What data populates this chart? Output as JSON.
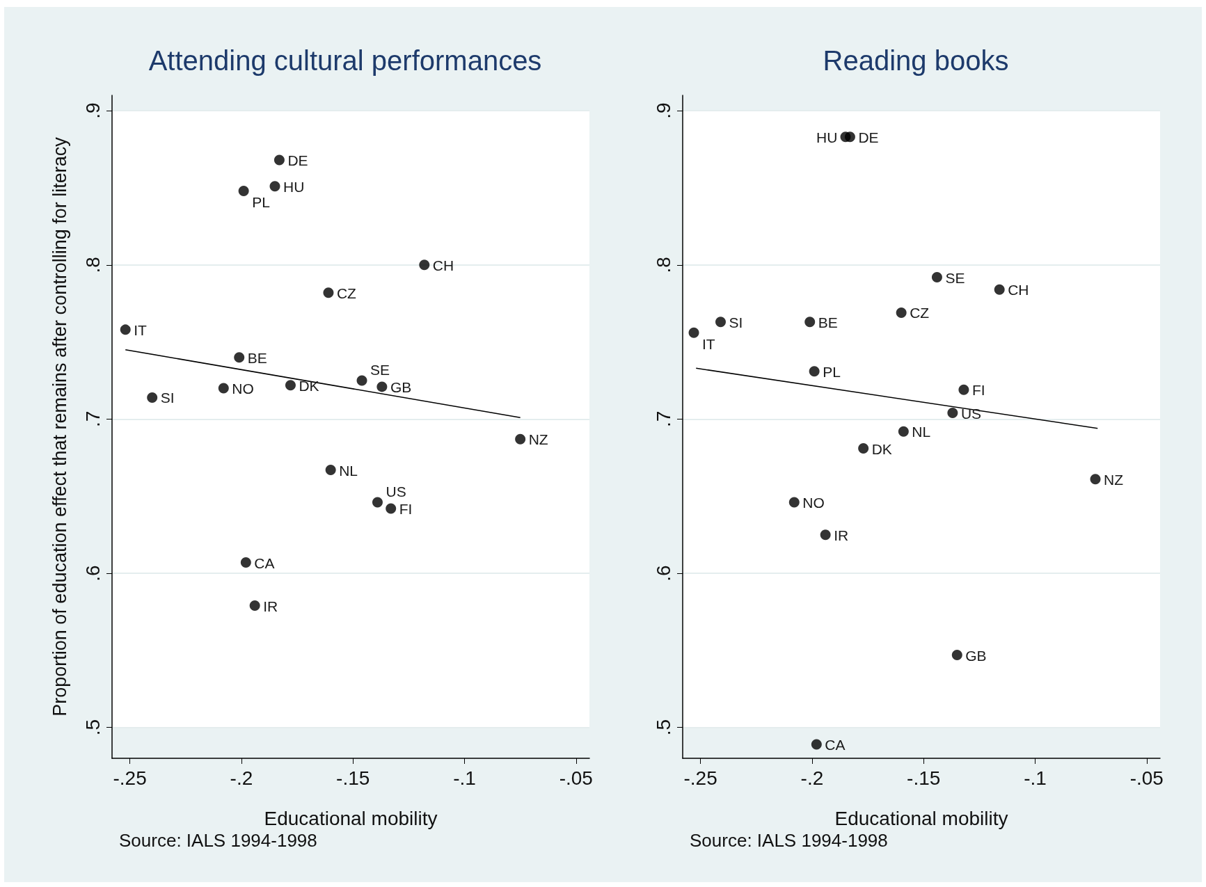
{
  "chart_data": [
    {
      "type": "scatter",
      "title": "Attending cultural performances",
      "xlabel": "Educational mobility",
      "ylabel": "Proportion of education effect that remains after controlling for literacy",
      "grid": "y",
      "xlim": [
        -0.258,
        -0.044
      ],
      "ylim": [
        0.48,
        0.91
      ],
      "xticks": [
        {
          "value": -0.25,
          "label": "-.25"
        },
        {
          "value": -0.2,
          "label": "-.2"
        },
        {
          "value": -0.15,
          "label": "-.15"
        },
        {
          "value": -0.1,
          "label": "-.1"
        },
        {
          "value": -0.05,
          "label": "-.05"
        }
      ],
      "yticks": [
        {
          "value": 0.5,
          "label": ".5"
        },
        {
          "value": 0.6,
          "label": ".6"
        },
        {
          "value": 0.7,
          "label": ".7"
        },
        {
          "value": 0.8,
          "label": ".8"
        },
        {
          "value": 0.9,
          "label": ".9"
        }
      ],
      "series": [
        {
          "color": "#000000",
          "marker": "circle",
          "x": [
            -0.183,
            -0.185,
            -0.199,
            -0.118,
            -0.161,
            -0.252,
            -0.201,
            -0.208,
            -0.178,
            -0.146,
            -0.137,
            -0.24,
            -0.075,
            -0.16,
            -0.139,
            -0.133,
            -0.198,
            -0.194
          ],
          "values": [
            0.868,
            0.851,
            0.848,
            0.8,
            0.782,
            0.758,
            0.74,
            0.72,
            0.722,
            0.725,
            0.721,
            0.714,
            0.687,
            0.667,
            0.646,
            0.642,
            0.607,
            0.579
          ]
        },
        {
          "type": "line",
          "marker": "none",
          "color": "#000000",
          "x": [
            -0.252,
            -0.075
          ],
          "values": [
            0.745,
            0.701
          ]
        }
      ],
      "annotations": [
        "Source: IALS 1994-1998",
        {
          "text": "DE",
          "x": -0.183,
          "y": 0.868
        },
        {
          "text": "HU",
          "x": -0.185,
          "y": 0.851
        },
        {
          "text": "PL",
          "x": -0.199,
          "y": 0.848
        },
        {
          "text": "CH",
          "x": -0.118,
          "y": 0.8
        },
        {
          "text": "CZ",
          "x": -0.161,
          "y": 0.782
        },
        {
          "text": "IT",
          "x": -0.252,
          "y": 0.758
        },
        {
          "text": "BE",
          "x": -0.201,
          "y": 0.74
        },
        {
          "text": "NO",
          "x": -0.208,
          "y": 0.72
        },
        {
          "text": "DK",
          "x": -0.178,
          "y": 0.722
        },
        {
          "text": "SE",
          "x": -0.146,
          "y": 0.725
        },
        {
          "text": "GB",
          "x": -0.137,
          "y": 0.721
        },
        {
          "text": "SI",
          "x": -0.24,
          "y": 0.714
        },
        {
          "text": "NZ",
          "x": -0.075,
          "y": 0.687
        },
        {
          "text": "NL",
          "x": -0.16,
          "y": 0.667
        },
        {
          "text": "US",
          "x": -0.139,
          "y": 0.646
        },
        {
          "text": "FI",
          "x": -0.133,
          "y": 0.642
        },
        {
          "text": "CA",
          "x": -0.198,
          "y": 0.607
        },
        {
          "text": "IR",
          "x": -0.194,
          "y": 0.579
        }
      ]
    },
    {
      "type": "scatter",
      "title": "Reading books",
      "xlabel": "Educational mobility",
      "grid": "y",
      "xlim": [
        -0.258,
        -0.044
      ],
      "ylim": [
        0.48,
        0.91
      ],
      "xticks": [
        {
          "value": -0.25,
          "label": "-.25"
        },
        {
          "value": -0.2,
          "label": "-.2"
        },
        {
          "value": -0.15,
          "label": "-.15"
        },
        {
          "value": -0.1,
          "label": "-.1"
        },
        {
          "value": -0.05,
          "label": "-.05"
        }
      ],
      "yticks": [
        {
          "value": 0.5,
          "label": ".5"
        },
        {
          "value": 0.6,
          "label": ".6"
        },
        {
          "value": 0.7,
          "label": ".7"
        },
        {
          "value": 0.8,
          "label": ".8"
        },
        {
          "value": 0.9,
          "label": ".9"
        }
      ],
      "series": [
        {
          "color": "#000000",
          "marker": "circle",
          "x": [
            -0.185,
            -0.183,
            -0.144,
            -0.116,
            -0.16,
            -0.241,
            -0.201,
            -0.253,
            -0.199,
            -0.132,
            -0.137,
            -0.159,
            -0.177,
            -0.073,
            -0.208,
            -0.194,
            -0.135,
            -0.198
          ],
          "values": [
            0.883,
            0.883,
            0.792,
            0.784,
            0.769,
            0.763,
            0.763,
            0.756,
            0.731,
            0.719,
            0.704,
            0.692,
            0.681,
            0.661,
            0.646,
            0.625,
            0.547,
            0.489
          ]
        },
        {
          "type": "line",
          "marker": "none",
          "color": "#000000",
          "x": [
            -0.252,
            -0.072
          ],
          "values": [
            0.733,
            0.694
          ]
        }
      ],
      "annotations": [
        "Source: IALS 1994-1998",
        {
          "text": "HU",
          "x": -0.185,
          "y": 0.883
        },
        {
          "text": "DE",
          "x": -0.183,
          "y": 0.883
        },
        {
          "text": "SE",
          "x": -0.144,
          "y": 0.792
        },
        {
          "text": "CH",
          "x": -0.116,
          "y": 0.784
        },
        {
          "text": "CZ",
          "x": -0.16,
          "y": 0.769
        },
        {
          "text": "SI",
          "x": -0.241,
          "y": 0.763
        },
        {
          "text": "BE",
          "x": -0.201,
          "y": 0.763
        },
        {
          "text": "IT",
          "x": -0.253,
          "y": 0.756
        },
        {
          "text": "PL",
          "x": -0.199,
          "y": 0.731
        },
        {
          "text": "FI",
          "x": -0.132,
          "y": 0.719
        },
        {
          "text": "US",
          "x": -0.137,
          "y": 0.704
        },
        {
          "text": "NL",
          "x": -0.159,
          "y": 0.692
        },
        {
          "text": "DK",
          "x": -0.177,
          "y": 0.681
        },
        {
          "text": "NZ",
          "x": -0.073,
          "y": 0.661
        },
        {
          "text": "NO",
          "x": -0.208,
          "y": 0.646
        },
        {
          "text": "IR",
          "x": -0.194,
          "y": 0.625
        },
        {
          "text": "GB",
          "x": -0.135,
          "y": 0.547
        },
        {
          "text": "CA",
          "x": -0.198,
          "y": 0.489
        }
      ]
    }
  ]
}
